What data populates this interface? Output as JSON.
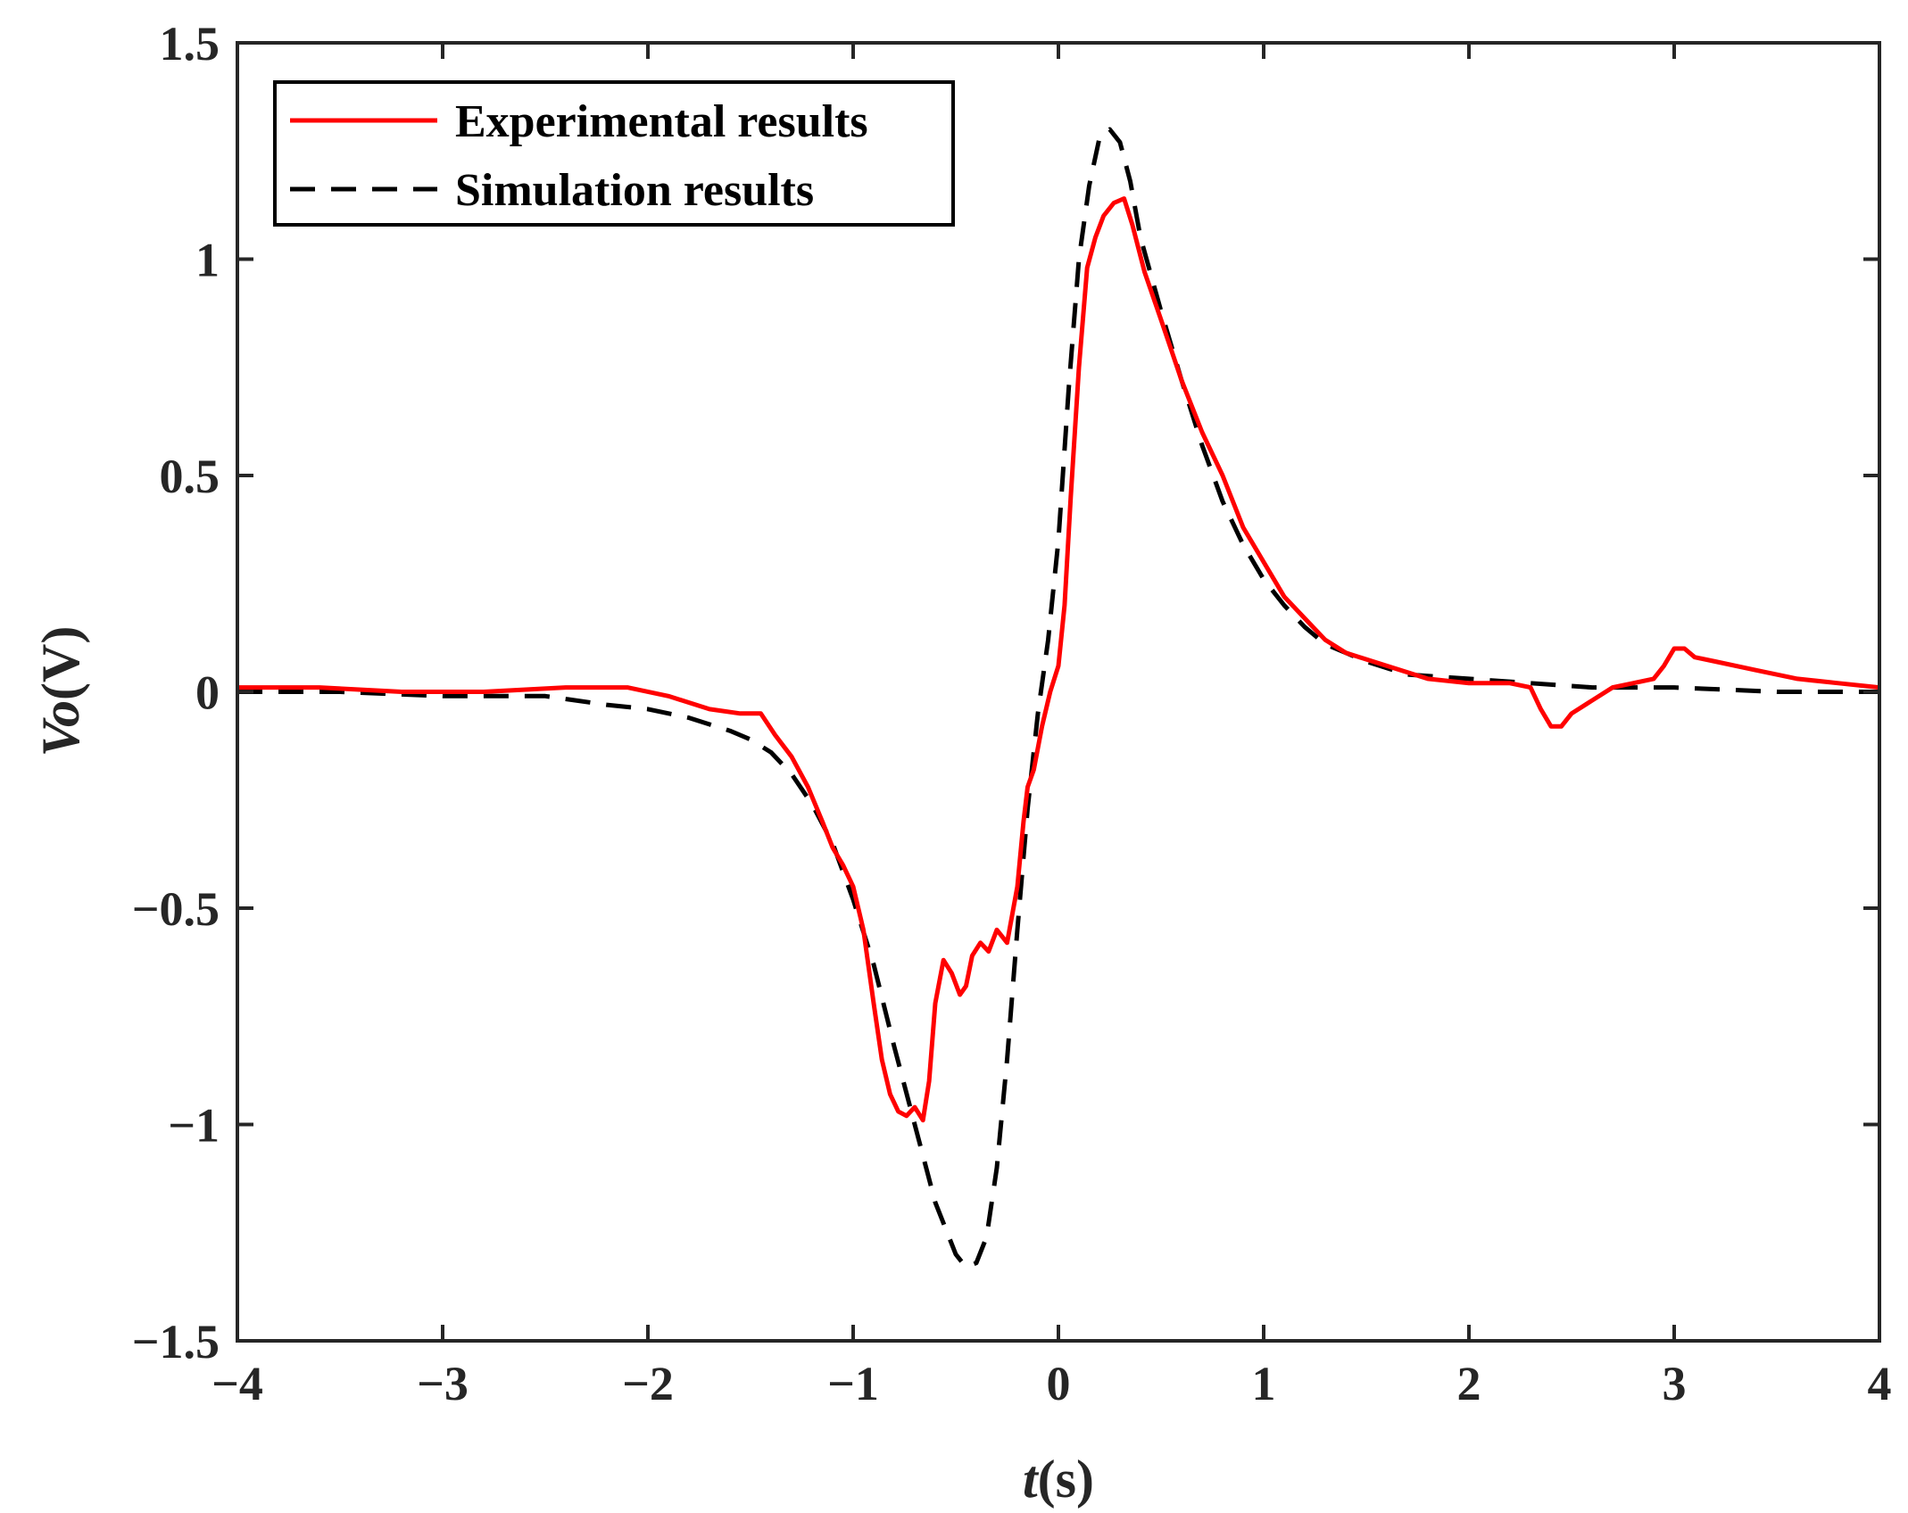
{
  "chart_data": {
    "type": "line",
    "title": "",
    "xlabel": {
      "var": "t",
      "unit": "(s)"
    },
    "ylabel": {
      "var": "Vo",
      "unit": "(V)"
    },
    "xlim": [
      -4,
      4
    ],
    "ylim": [
      -1.5,
      1.5
    ],
    "xticks": [
      -4,
      -3,
      -2,
      -1,
      0,
      1,
      2,
      3,
      4
    ],
    "xtick_labels": [
      "−4",
      "−3",
      "−2",
      "−1",
      "0",
      "1",
      "2",
      "3",
      "4"
    ],
    "yticks": [
      -1.5,
      -1,
      -0.5,
      0,
      0.5,
      1,
      1.5
    ],
    "ytick_labels": [
      "−1.5",
      "−1",
      "−0.5",
      "0",
      "0.5",
      "1",
      "1.5"
    ],
    "grid": false,
    "legend_position": "top-left",
    "series": [
      {
        "name": "Experimental results",
        "style": "solid",
        "color": "#ff0000",
        "x": [
          -4.0,
          -3.6,
          -3.2,
          -2.8,
          -2.4,
          -2.1,
          -1.9,
          -1.7,
          -1.55,
          -1.45,
          -1.38,
          -1.3,
          -1.22,
          -1.15,
          -1.1,
          -1.05,
          -1.0,
          -0.95,
          -0.9,
          -0.86,
          -0.82,
          -0.78,
          -0.74,
          -0.7,
          -0.66,
          -0.63,
          -0.6,
          -0.56,
          -0.52,
          -0.48,
          -0.45,
          -0.42,
          -0.38,
          -0.34,
          -0.3,
          -0.25,
          -0.2,
          -0.17,
          -0.15,
          -0.12,
          -0.08,
          -0.04,
          0.0,
          0.03,
          0.06,
          0.1,
          0.14,
          0.18,
          0.22,
          0.27,
          0.32,
          0.36,
          0.42,
          0.5,
          0.6,
          0.7,
          0.8,
          0.9,
          1.0,
          1.1,
          1.2,
          1.3,
          1.4,
          1.6,
          1.8,
          2.0,
          2.2,
          2.3,
          2.35,
          2.4,
          2.45,
          2.5,
          2.6,
          2.7,
          2.8,
          2.9,
          2.95,
          3.0,
          3.05,
          3.1,
          3.2,
          3.4,
          3.6,
          3.8,
          4.0
        ],
        "y": [
          0.01,
          0.01,
          0.0,
          0.0,
          0.01,
          0.01,
          -0.01,
          -0.04,
          -0.05,
          -0.05,
          -0.1,
          -0.15,
          -0.22,
          -0.3,
          -0.36,
          -0.4,
          -0.45,
          -0.55,
          -0.72,
          -0.85,
          -0.93,
          -0.97,
          -0.98,
          -0.96,
          -0.99,
          -0.9,
          -0.72,
          -0.62,
          -0.65,
          -0.7,
          -0.68,
          -0.61,
          -0.58,
          -0.6,
          -0.55,
          -0.58,
          -0.45,
          -0.3,
          -0.22,
          -0.18,
          -0.08,
          0.0,
          0.06,
          0.2,
          0.45,
          0.75,
          0.98,
          1.05,
          1.1,
          1.13,
          1.14,
          1.08,
          0.97,
          0.86,
          0.72,
          0.6,
          0.5,
          0.38,
          0.3,
          0.22,
          0.17,
          0.12,
          0.09,
          0.06,
          0.03,
          0.02,
          0.02,
          0.01,
          -0.04,
          -0.08,
          -0.08,
          -0.05,
          -0.02,
          0.01,
          0.02,
          0.03,
          0.06,
          0.1,
          0.1,
          0.08,
          0.07,
          0.05,
          0.03,
          0.02,
          0.01
        ]
      },
      {
        "name": "Simulation results",
        "style": "dashed",
        "color": "#000000",
        "x": [
          -4.0,
          -3.5,
          -3.0,
          -2.5,
          -2.2,
          -2.0,
          -1.8,
          -1.6,
          -1.5,
          -1.4,
          -1.3,
          -1.2,
          -1.1,
          -1.0,
          -0.9,
          -0.8,
          -0.7,
          -0.6,
          -0.5,
          -0.45,
          -0.4,
          -0.35,
          -0.3,
          -0.25,
          -0.2,
          -0.15,
          -0.1,
          -0.05,
          0.0,
          0.05,
          0.1,
          0.15,
          0.2,
          0.25,
          0.3,
          0.35,
          0.4,
          0.5,
          0.6,
          0.7,
          0.8,
          0.9,
          1.0,
          1.1,
          1.2,
          1.3,
          1.5,
          1.7,
          2.0,
          2.3,
          2.6,
          3.0,
          3.5,
          4.0
        ],
        "y": [
          0.0,
          0.0,
          -0.01,
          -0.01,
          -0.03,
          -0.04,
          -0.06,
          -0.09,
          -0.11,
          -0.14,
          -0.19,
          -0.26,
          -0.35,
          -0.48,
          -0.63,
          -0.82,
          -1.0,
          -1.18,
          -1.3,
          -1.33,
          -1.32,
          -1.26,
          -1.1,
          -0.85,
          -0.55,
          -0.27,
          -0.05,
          0.12,
          0.35,
          0.7,
          1.0,
          1.17,
          1.28,
          1.3,
          1.27,
          1.18,
          1.05,
          0.88,
          0.72,
          0.57,
          0.44,
          0.34,
          0.26,
          0.2,
          0.15,
          0.11,
          0.07,
          0.04,
          0.03,
          0.02,
          0.01,
          0.01,
          0.0,
          0.0
        ]
      }
    ]
  }
}
